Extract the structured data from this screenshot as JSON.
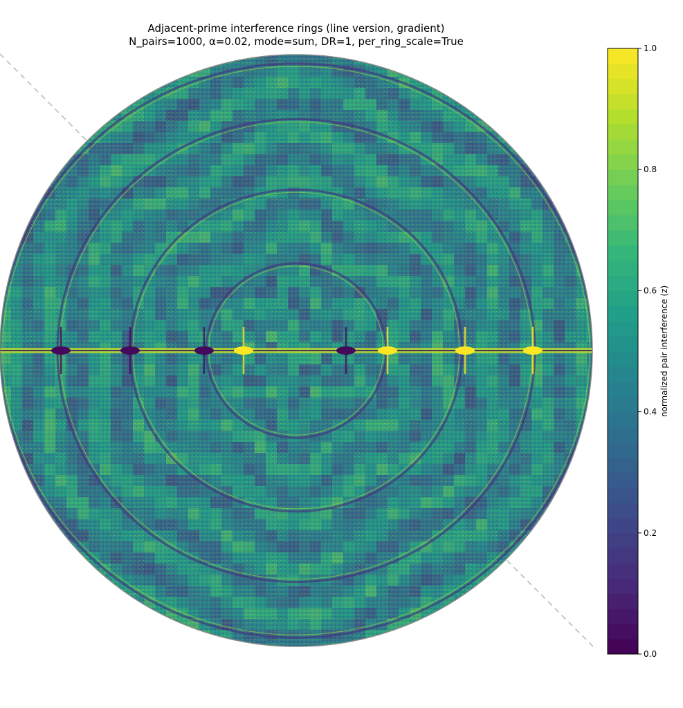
{
  "chart_data": {
    "type": "heatmap",
    "title_lines": [
      "Adjacent-prime interference rings (line version, gradient)",
      "N_pairs=1000, α=0.02, mode=sum, DR=1, per_ring_scale=True"
    ],
    "colorbar": {
      "label": "normalized pair interference (z)",
      "range": [
        0.0,
        1.0
      ],
      "ticks": [
        0.0,
        0.2,
        0.4,
        0.6,
        0.8,
        1.0
      ],
      "tick_labels": [
        "0.0",
        "0.2",
        "0.4",
        "0.6",
        "0.8",
        "1.0"
      ],
      "levels": 40,
      "colormap": "viridis"
    },
    "rings_visible": 4,
    "grid": false,
    "colors": {
      "viridis": [
        "#440154",
        "#482878",
        "#3e4989",
        "#31688e",
        "#26828e",
        "#1f9e89",
        "#35b779",
        "#6ece58",
        "#b5de2b",
        "#fde725"
      ],
      "field_dominant": "#2a8c84",
      "boundary": "#888888",
      "diagonal_dash": "#bbbbbb",
      "hotspot": "#e8462a"
    }
  }
}
